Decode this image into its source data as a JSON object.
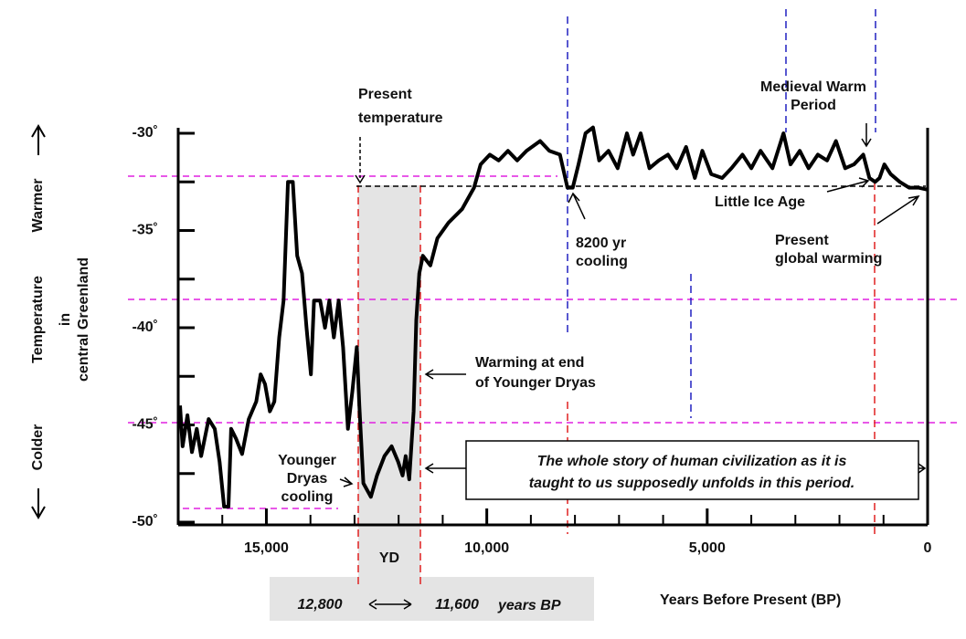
{
  "chart_data": {
    "type": "line",
    "x": [
      16958,
      16900,
      16790,
      16690,
      16580,
      16480,
      16310,
      16170,
      16060,
      15960,
      15860,
      15800,
      15690,
      15550,
      15400,
      15230,
      15130,
      15030,
      14920,
      14820,
      14710,
      14610,
      14510,
      14400,
      14300,
      14190,
      14090,
      13990,
      13920,
      13780,
      13670,
      13570,
      13470,
      13360,
      13260,
      13150,
      13050,
      12950,
      12890,
      12800,
      12630,
      12490,
      12320,
      12160,
      12010,
      11910,
      11840,
      11760,
      11660,
      11600,
      11530,
      11450,
      11280,
      11120,
      10870,
      10560,
      10290,
      10140,
      9930,
      9730,
      9520,
      9310,
      9100,
      8790,
      8580,
      8340,
      8170,
      8050,
      7920,
      7760,
      7590,
      7450,
      7240,
      7030,
      6820,
      6680,
      6510,
      6310,
      6100,
      5890,
      5690,
      5480,
      5280,
      5110,
      4910,
      4660,
      4450,
      4200,
      4000,
      3790,
      3520,
      3270,
      3110,
      2900,
      2700,
      2490,
      2280,
      2080,
      1870,
      1670,
      1460,
      1320,
      1190,
      1090,
      980,
      840,
      630,
      420,
      210,
      0
    ],
    "values": [
      -44.0,
      -46.1,
      -44.5,
      -46.4,
      -45.2,
      -46.6,
      -44.7,
      -45.2,
      -46.9,
      -49.2,
      -49.2,
      -45.2,
      -45.7,
      -46.5,
      -44.7,
      -43.8,
      -42.4,
      -42.9,
      -44.3,
      -43.8,
      -40.5,
      -38.6,
      -32.5,
      -32.5,
      -36.3,
      -37.2,
      -40.0,
      -42.4,
      -38.6,
      -38.6,
      -40.0,
      -38.6,
      -40.5,
      -38.6,
      -41.0,
      -45.2,
      -43.3,
      -41.0,
      -44.0,
      -48.0,
      -48.7,
      -47.6,
      -46.6,
      -46.1,
      -46.9,
      -47.6,
      -46.6,
      -47.8,
      -44.3,
      -39.6,
      -37.2,
      -36.3,
      -36.8,
      -35.4,
      -34.6,
      -33.9,
      -32.8,
      -31.6,
      -31.1,
      -31.4,
      -30.9,
      -31.4,
      -30.9,
      -30.4,
      -30.9,
      -31.1,
      -32.8,
      -32.8,
      -31.6,
      -30.0,
      -29.7,
      -31.4,
      -30.9,
      -31.8,
      -30.0,
      -31.1,
      -30.0,
      -31.8,
      -31.4,
      -31.1,
      -31.8,
      -30.7,
      -32.3,
      -30.9,
      -32.1,
      -32.3,
      -31.8,
      -31.1,
      -31.8,
      -30.9,
      -31.8,
      -30.0,
      -31.6,
      -30.9,
      -31.8,
      -31.1,
      -31.4,
      -30.4,
      -31.8,
      -31.6,
      -31.1,
      -32.3,
      -32.5,
      -32.3,
      -31.6,
      -32.1,
      -32.5,
      -32.8,
      -32.8,
      -32.9
    ],
    "color": "#000000",
    "xlim": [
      17000,
      0
    ],
    "ylim": [
      -50,
      -30
    ],
    "xticks": [
      {
        "value": 15000,
        "label": "15,000"
      },
      {
        "value": 10000,
        "label": "10,000"
      },
      {
        "value": 5000,
        "label": "5,000"
      },
      0
    ],
    "yticks": [
      {
        "value": -30,
        "label": "-30˚"
      },
      {
        "value": -35,
        "label": "-35˚"
      },
      {
        "value": -40,
        "label": "-40˚"
      },
      {
        "value": -45,
        "label": "-45˚"
      },
      {
        "value": -50,
        "label": "-50˚"
      }
    ],
    "xlabel": "Years Before Present (BP)",
    "ylabel": [
      "Colder",
      "Temperature",
      "in",
      "central Greenland",
      "Warmer"
    ],
    "annotations": [
      {
        "lines": [
          "Present",
          "temperature"
        ]
      },
      {
        "lines": [
          "8200 yr",
          "cooling"
        ]
      },
      {
        "lines": [
          "Medieval Warm",
          "Period"
        ]
      },
      {
        "lines": [
          "Little Ice Age"
        ]
      },
      {
        "lines": [
          "Present",
          "global warming"
        ]
      },
      {
        "lines": [
          "Warming at end",
          "of Younger Dryas"
        ]
      },
      {
        "lines": [
          "Younger",
          "Dryas",
          "cooling"
        ]
      },
      {
        "lines": [
          "The whole story of human civilization as it is",
          "taught to us supposedly unfolds in this period."
        ]
      },
      {
        "lines": [
          "YD"
        ]
      }
    ],
    "period": {
      "start": "12,800",
      "end": "11,600",
      "unit": "years BP"
    }
  }
}
